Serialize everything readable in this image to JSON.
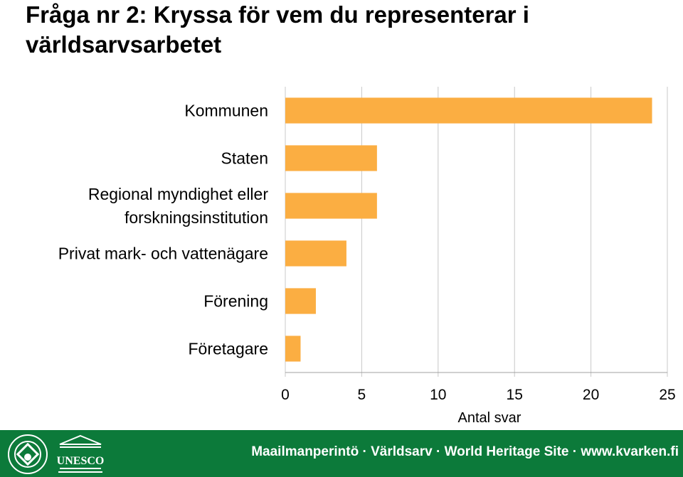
{
  "title": "Fråga nr 2: Kryssa för vem du representerar i världsarvsarbetet",
  "chart_data": {
    "type": "bar",
    "orientation": "horizontal",
    "categories": [
      "Kommunen",
      "Staten",
      "Regional myndighet eller forskningsinstitution",
      "Privat mark- och vattenägare",
      "Förening",
      "Företagare"
    ],
    "values": [
      24,
      6,
      6,
      4,
      2,
      1
    ],
    "xlabel": "Antal svar",
    "xlim": [
      0,
      25
    ],
    "xticks": [
      0,
      5,
      10,
      15,
      20,
      25
    ],
    "grid": "vertical",
    "bar_color": "#fbae42"
  },
  "footer": {
    "text": "Maailmanperintö · Världsarv · World Heritage Site · www.kvarken.fi",
    "logo_unesco_text": "UNESCO",
    "background": "#0c7a3a"
  }
}
